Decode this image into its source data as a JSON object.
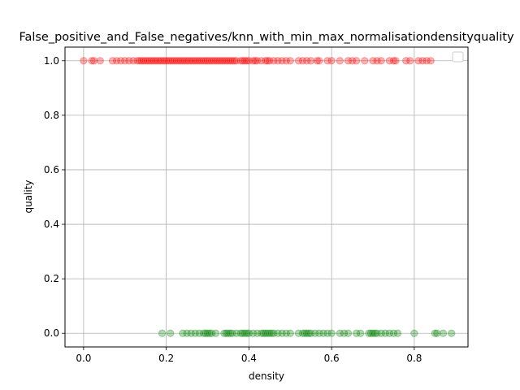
{
  "chart_data": {
    "type": "scatter",
    "title": "False_positive_and_False_negatives/knn_with_min_max_normalisationdensityquality",
    "xlabel": "density",
    "ylabel": "quality",
    "xlim": [
      -0.045,
      0.93
    ],
    "ylim": [
      -0.05,
      1.05
    ],
    "xticks": [
      0.0,
      0.2,
      0.4,
      0.6,
      0.8
    ],
    "yticks": [
      0.0,
      0.2,
      0.4,
      0.6,
      0.8,
      1.0
    ],
    "xtick_labels": [
      "0.0",
      "0.2",
      "0.4",
      "0.6",
      "0.8"
    ],
    "ytick_labels": [
      "0.0",
      "0.2",
      "0.4",
      "0.6",
      "0.8",
      "1.0"
    ],
    "grid": true,
    "legend": {
      "placement": "upper right",
      "entries": []
    },
    "series": [
      {
        "color": "#ff0000",
        "alpha": 0.3,
        "x": [
          0.0,
          0.02,
          0.025,
          0.04,
          0.07,
          0.08,
          0.09,
          0.1,
          0.11,
          0.12,
          0.13,
          0.135,
          0.14,
          0.145,
          0.15,
          0.155,
          0.16,
          0.165,
          0.17,
          0.175,
          0.18,
          0.185,
          0.19,
          0.195,
          0.2,
          0.205,
          0.21,
          0.215,
          0.22,
          0.225,
          0.23,
          0.235,
          0.24,
          0.245,
          0.25,
          0.255,
          0.26,
          0.265,
          0.27,
          0.275,
          0.28,
          0.285,
          0.29,
          0.295,
          0.3,
          0.305,
          0.31,
          0.315,
          0.32,
          0.325,
          0.33,
          0.335,
          0.34,
          0.345,
          0.35,
          0.355,
          0.36,
          0.365,
          0.37,
          0.38,
          0.385,
          0.39,
          0.395,
          0.4,
          0.41,
          0.415,
          0.42,
          0.43,
          0.44,
          0.445,
          0.45,
          0.46,
          0.47,
          0.48,
          0.49,
          0.5,
          0.52,
          0.53,
          0.54,
          0.55,
          0.565,
          0.57,
          0.59,
          0.6,
          0.62,
          0.64,
          0.65,
          0.66,
          0.68,
          0.7,
          0.71,
          0.72,
          0.74,
          0.75,
          0.755,
          0.78,
          0.79,
          0.81,
          0.82,
          0.83,
          0.84
        ],
        "y": [
          1,
          1,
          1,
          1,
          1,
          1,
          1,
          1,
          1,
          1,
          1,
          1,
          1,
          1,
          1,
          1,
          1,
          1,
          1,
          1,
          1,
          1,
          1,
          1,
          1,
          1,
          1,
          1,
          1,
          1,
          1,
          1,
          1,
          1,
          1,
          1,
          1,
          1,
          1,
          1,
          1,
          1,
          1,
          1,
          1,
          1,
          1,
          1,
          1,
          1,
          1,
          1,
          1,
          1,
          1,
          1,
          1,
          1,
          1,
          1,
          1,
          1,
          1,
          1,
          1,
          1,
          1,
          1,
          1,
          1,
          1,
          1,
          1,
          1,
          1,
          1,
          1,
          1,
          1,
          1,
          1,
          1,
          1,
          1,
          1,
          1,
          1,
          1,
          1,
          1,
          1,
          1,
          1,
          1,
          1,
          1,
          1,
          1,
          1,
          1,
          1
        ]
      },
      {
        "color": "#008000",
        "alpha": 0.3,
        "x": [
          0.19,
          0.21,
          0.24,
          0.25,
          0.26,
          0.27,
          0.28,
          0.29,
          0.295,
          0.3,
          0.305,
          0.31,
          0.32,
          0.34,
          0.345,
          0.35,
          0.355,
          0.36,
          0.37,
          0.38,
          0.385,
          0.39,
          0.395,
          0.4,
          0.41,
          0.42,
          0.43,
          0.435,
          0.44,
          0.445,
          0.45,
          0.455,
          0.46,
          0.47,
          0.48,
          0.49,
          0.5,
          0.52,
          0.53,
          0.535,
          0.54,
          0.545,
          0.55,
          0.56,
          0.57,
          0.58,
          0.59,
          0.6,
          0.62,
          0.63,
          0.64,
          0.66,
          0.67,
          0.69,
          0.695,
          0.7,
          0.705,
          0.71,
          0.72,
          0.73,
          0.74,
          0.75,
          0.76,
          0.8,
          0.85,
          0.855,
          0.87,
          0.89
        ],
        "y": [
          0,
          0,
          0,
          0,
          0,
          0,
          0,
          0,
          0,
          0,
          0,
          0,
          0,
          0,
          0,
          0,
          0,
          0,
          0,
          0,
          0,
          0,
          0,
          0,
          0,
          0,
          0,
          0,
          0,
          0,
          0,
          0,
          0,
          0,
          0,
          0,
          0,
          0,
          0,
          0,
          0,
          0,
          0,
          0,
          0,
          0,
          0,
          0,
          0,
          0,
          0,
          0,
          0,
          0,
          0,
          0,
          0,
          0,
          0,
          0,
          0,
          0,
          0,
          0,
          0,
          0,
          0,
          0
        ]
      }
    ]
  }
}
